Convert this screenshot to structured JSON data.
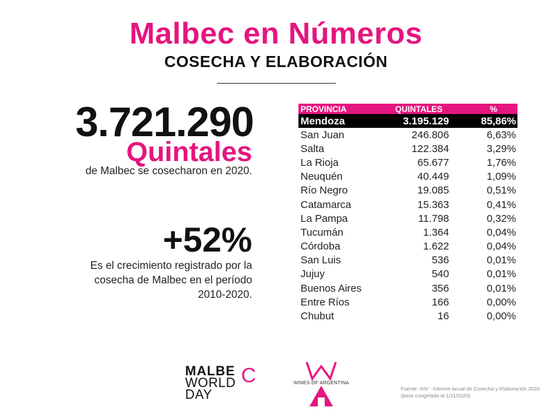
{
  "header": {
    "title": "Malbec en Números",
    "subtitle": "COSECHA Y ELABORACIÓN"
  },
  "stats": {
    "harvest_value": "3.721.290",
    "harvest_unit": "Quintales",
    "harvest_desc": "de Malbec se cosecharon en 2020.",
    "growth_value": "+52%",
    "growth_desc": "Es el crecimiento registrado por la cosecha de Malbec en el período 2010-2020."
  },
  "table": {
    "headers": [
      "PROVINCIA",
      "QUINTALES",
      "%"
    ],
    "rows": [
      {
        "provincia": "Mendoza",
        "quintales": "3.195.129",
        "pct": "85,86%"
      },
      {
        "provincia": "San Juan",
        "quintales": "246.806",
        "pct": "6,63%"
      },
      {
        "provincia": "Salta",
        "quintales": "122.384",
        "pct": "3,29%"
      },
      {
        "provincia": "La Rioja",
        "quintales": "65.677",
        "pct": "1,76%"
      },
      {
        "provincia": "Neuquén",
        "quintales": "40.449",
        "pct": "1,09%"
      },
      {
        "provincia": "Río Negro",
        "quintales": "19.085",
        "pct": "0,51%"
      },
      {
        "provincia": "Catamarca",
        "quintales": "15.363",
        "pct": "0,41%"
      },
      {
        "provincia": "La Pampa",
        "quintales": "11.798",
        "pct": "0,32%"
      },
      {
        "provincia": "Tucumán",
        "quintales": "1.364",
        "pct": "0,04%"
      },
      {
        "provincia": "Córdoba",
        "quintales": "1.622",
        "pct": "0,04%"
      },
      {
        "provincia": "San Luis",
        "quintales": "536",
        "pct": "0,01%"
      },
      {
        "provincia": "Jujuy",
        "quintales": "540",
        "pct": "0,01%"
      },
      {
        "provincia": "Buenos Aires",
        "quintales": "356",
        "pct": "0,01%"
      },
      {
        "provincia": "Entre Ríos",
        "quintales": "166",
        "pct": "0,00%"
      },
      {
        "provincia": "Chubut",
        "quintales": "16",
        "pct": "0,00%"
      }
    ]
  },
  "logos": {
    "malbec_line1": "MALBE",
    "malbec_c": "C",
    "malbec_line2": "WORLD",
    "malbec_line3": "DAY",
    "woa_text": "WINES OF ARGENTINA"
  },
  "source": "Fuente: INV - Informe Anual de Cosecha y Elaboración 2020 (base congelada al 1/11/2020)",
  "colors": {
    "accent": "#e5157f",
    "highlight_row": "#000000",
    "text": "#111111"
  }
}
